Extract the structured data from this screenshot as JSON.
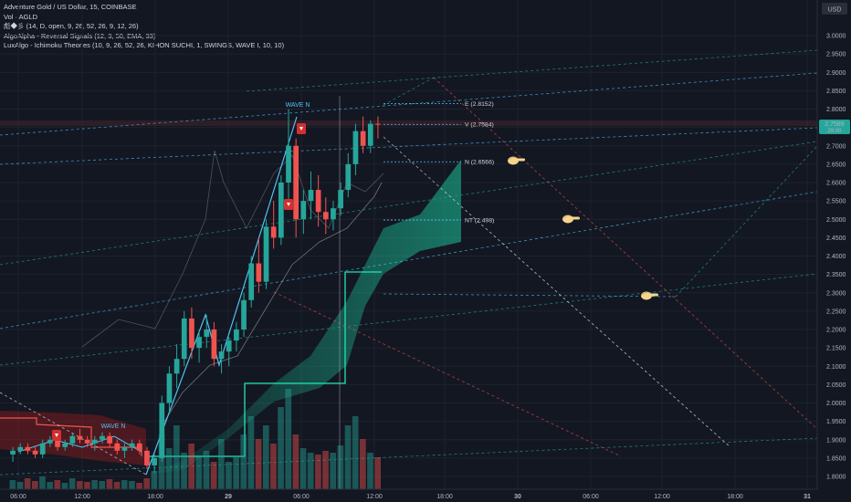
{
  "legend": {
    "line1": "Adventure Gold / US Dollar, 15, COINBASE",
    "line2": "Vol · AGLD",
    "line3": "彪◆彡 (14, D, open, 9, 26, 52, 26, 9, 12, 26)",
    "line4": "AlgoAlpha - Reversal Signals (12, 3, 50, EMA, 33)",
    "line5": "LuxAlgo - Ichimoku Theories (10, 9, 26, 52, 26, KIHON SUCHI, 1, SWINGS, WAVE I, 10, 10)"
  },
  "currency": "USD",
  "last_price": "2.7589",
  "last_price_sub": "29:00",
  "colors": {
    "background": "#131722",
    "up": "#26a69a",
    "down": "#ef5350",
    "cloud": "#1de9b6",
    "bear_cloud": "#b71c1c",
    "wave": "#4fc3f7"
  },
  "chart_data": {
    "type": "candlestick",
    "ylim": [
      1.77,
      3.08
    ],
    "y_ticks": [
      "3.0000",
      "2.9500",
      "2.9000",
      "2.8500",
      "2.8000",
      "2.7500",
      "2.7000",
      "2.6500",
      "2.6000",
      "2.5500",
      "2.5000",
      "2.4500",
      "2.4000",
      "2.3500",
      "2.3000",
      "2.2500",
      "2.2000",
      "2.1500",
      "2.1000",
      "2.0500",
      "2.0000",
      "1.9500",
      "1.9000",
      "1.8500",
      "1.8000"
    ],
    "x_ticks": [
      "06:00",
      "12:00",
      "18:00",
      "29",
      "06:00",
      "12:00",
      "18:00",
      "30",
      "06:00",
      "12:00",
      "18:00",
      "31"
    ],
    "levels": [
      {
        "label": "E (2.8152)",
        "value": 2.8152
      },
      {
        "label": "V (2.7584)",
        "value": 2.7584
      },
      {
        "label": "N (2.6566)",
        "value": 2.6566
      },
      {
        "label": "NT (2.498)",
        "value": 2.498
      }
    ],
    "wave_labels": [
      "WAVE N",
      "WAVE N"
    ],
    "candles": [
      [
        1.86,
        1.88,
        1.84,
        1.87
      ],
      [
        1.87,
        1.89,
        1.86,
        1.88
      ],
      [
        1.88,
        1.89,
        1.86,
        1.87
      ],
      [
        1.87,
        1.88,
        1.85,
        1.86
      ],
      [
        1.86,
        1.9,
        1.85,
        1.89
      ],
      [
        1.89,
        1.91,
        1.88,
        1.9
      ],
      [
        1.9,
        1.91,
        1.87,
        1.88
      ],
      [
        1.88,
        1.9,
        1.87,
        1.89
      ],
      [
        1.89,
        1.92,
        1.88,
        1.91
      ],
      [
        1.91,
        1.93,
        1.89,
        1.9
      ],
      [
        1.9,
        1.91,
        1.88,
        1.89
      ],
      [
        1.89,
        1.91,
        1.87,
        1.9
      ],
      [
        1.9,
        1.92,
        1.89,
        1.91
      ],
      [
        1.91,
        1.92,
        1.88,
        1.89
      ],
      [
        1.89,
        1.9,
        1.86,
        1.87
      ],
      [
        1.87,
        1.89,
        1.85,
        1.88
      ],
      [
        1.88,
        1.9,
        1.87,
        1.89
      ],
      [
        1.89,
        1.9,
        1.86,
        1.87
      ],
      [
        1.87,
        1.88,
        1.82,
        1.83
      ],
      [
        1.83,
        1.86,
        1.81,
        1.85
      ],
      [
        1.85,
        2.02,
        1.84,
        2.0
      ],
      [
        2.0,
        2.1,
        1.97,
        2.08
      ],
      [
        2.08,
        2.16,
        2.04,
        2.12
      ],
      [
        2.12,
        2.25,
        2.1,
        2.23
      ],
      [
        2.23,
        2.26,
        2.12,
        2.15
      ],
      [
        2.15,
        2.2,
        2.11,
        2.18
      ],
      [
        2.18,
        2.24,
        2.15,
        2.2
      ],
      [
        2.2,
        2.22,
        2.1,
        2.12
      ],
      [
        2.12,
        2.16,
        2.08,
        2.14
      ],
      [
        2.14,
        2.18,
        2.1,
        2.17
      ],
      [
        2.17,
        2.22,
        2.14,
        2.2
      ],
      [
        2.2,
        2.3,
        2.18,
        2.28
      ],
      [
        2.28,
        2.4,
        2.26,
        2.38
      ],
      [
        2.38,
        2.45,
        2.3,
        2.33
      ],
      [
        2.33,
        2.5,
        2.31,
        2.48
      ],
      [
        2.48,
        2.55,
        2.42,
        2.45
      ],
      [
        2.45,
        2.62,
        2.43,
        2.6
      ],
      [
        2.6,
        2.8,
        2.55,
        2.7
      ],
      [
        2.7,
        2.72,
        2.45,
        2.5
      ],
      [
        2.5,
        2.58,
        2.46,
        2.55
      ],
      [
        2.55,
        2.63,
        2.5,
        2.58
      ],
      [
        2.58,
        2.62,
        2.48,
        2.52
      ],
      [
        2.52,
        2.56,
        2.46,
        2.5
      ],
      [
        2.5,
        2.55,
        2.47,
        2.53
      ],
      [
        2.53,
        2.6,
        2.51,
        2.58
      ],
      [
        2.58,
        2.68,
        2.56,
        2.65
      ],
      [
        2.65,
        2.76,
        2.62,
        2.74
      ],
      [
        2.74,
        2.78,
        2.68,
        2.7
      ],
      [
        2.7,
        2.77,
        2.68,
        2.76
      ],
      [
        2.76,
        2.78,
        2.72,
        2.7589
      ]
    ]
  }
}
